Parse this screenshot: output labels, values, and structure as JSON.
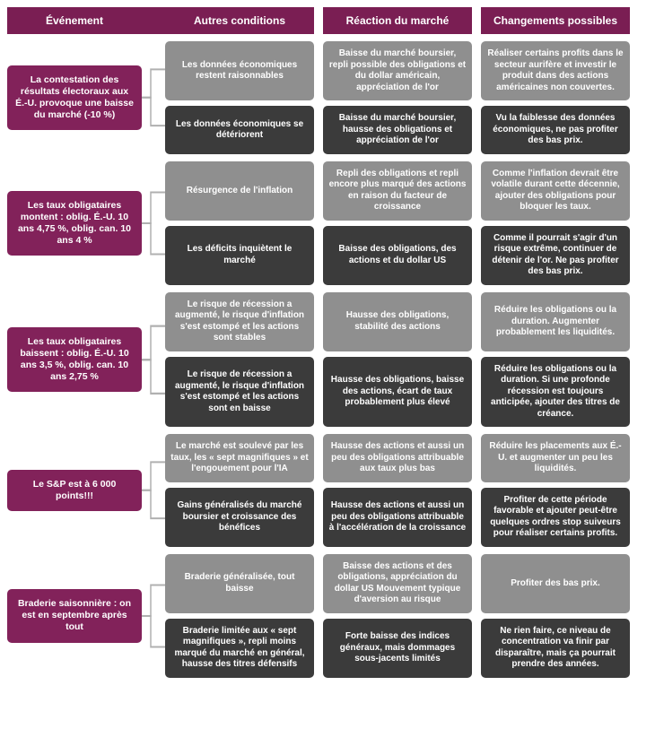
{
  "colors": {
    "header_bg": "#7a1e53",
    "event_bg": "#82225a",
    "light_box": "#8f8f8f",
    "dark_box": "#3b3b3b",
    "connector_stroke": "#b0b0b0"
  },
  "layout": {
    "col_widths": {
      "event": 150,
      "connector": 26,
      "cond": 166,
      "react": 166,
      "change": 166,
      "gap": 10
    },
    "font_size_header": 12,
    "font_size_event": 10.5,
    "font_size_cell": 10,
    "border_radius": 5
  },
  "headers": {
    "event": "Événement",
    "conditions": "Autres conditions",
    "reaction": "Réaction du marché",
    "changes": "Changements possibles"
  },
  "sections": [
    {
      "event": "La contestation des résultats électoraux aux É.-U. provoque une baisse du marché (-10 %)",
      "rows": [
        {
          "shade": "light",
          "condition": "Les données économiques restent raisonnables",
          "reaction": "Baisse du marché boursier, repli possible des obligations et du dollar américain, appréciation de l'or",
          "change": "Réaliser certains profits dans le secteur aurifère et investir le produit dans des actions américaines non couvertes."
        },
        {
          "shade": "dark",
          "condition": "Les données économiques se détériorent",
          "reaction": "Baisse du marché boursier, hausse des obligations et appréciation de l'or",
          "change": "Vu la faiblesse des données économiques, ne pas profiter des bas prix."
        }
      ]
    },
    {
      "event": "Les taux obligataires montent : oblig. É.-U. 10 ans 4,75 %, oblig. can. 10 ans 4 %",
      "rows": [
        {
          "shade": "light",
          "condition": "Résurgence de l'inflation",
          "reaction": "Repli des obligations et repli encore plus marqué des actions en raison du facteur de croissance",
          "change": "Comme l'inflation devrait être volatile durant cette décennie, ajouter des obligations pour bloquer les taux."
        },
        {
          "shade": "dark",
          "condition": "Les déficits inquiètent le marché",
          "reaction": "Baisse des obligations, des actions et du dollar US",
          "change": "Comme il pourrait s'agir d'un risque extrême, continuer de détenir de l'or. Ne pas profiter des bas prix."
        }
      ]
    },
    {
      "event": "Les taux obligataires baissent : oblig. É.-U. 10 ans 3,5 %, oblig. can. 10 ans 2,75 %",
      "rows": [
        {
          "shade": "light",
          "condition": "Le risque de récession a augmenté, le risque d'inflation s'est estompé et les actions sont stables",
          "reaction": "Hausse des obligations, stabilité des actions",
          "change": "Réduire les obligations ou la duration. Augmenter probablement les liquidités."
        },
        {
          "shade": "dark",
          "condition": "Le risque de récession a augmenté, le risque d'inflation s'est estompé et les actions sont en baisse",
          "reaction": "Hausse des obligations, baisse des actions, écart de taux probablement plus élevé",
          "change": "Réduire les obligations ou la duration. Si une profonde récession est toujours anticipée, ajouter des titres de créance."
        }
      ]
    },
    {
      "event": "Le S&P est à 6 000 points!!!",
      "rows": [
        {
          "shade": "light",
          "condition": "Le marché est soulevé par les taux, les « sept magnifiques » et l'engouement pour l'IA",
          "reaction": "Hausse des actions et aussi un peu des obligations attribuable aux taux plus bas",
          "change": "Réduire les placements aux É.-U. et augmenter un peu les liquidités."
        },
        {
          "shade": "dark",
          "condition": "Gains généralisés du marché boursier et croissance des bénéfices",
          "reaction": "Hausse des actions et aussi un peu des obligations attribuable à l'accélération de la croissance",
          "change": "Profiter de cette période favorable et ajouter peut-être quelques ordres stop suiveurs pour réaliser certains profits."
        }
      ]
    },
    {
      "event": "Braderie saisonnière : on est en septembre après tout",
      "rows": [
        {
          "shade": "light",
          "condition": "Braderie généralisée, tout baisse",
          "reaction": "Baisse des actions et des obligations, appréciation du dollar US Mouvement typique d'aversion au risque",
          "change": "Profiter des bas prix."
        },
        {
          "shade": "dark",
          "condition": "Braderie limitée aux « sept magnifiques », repli moins marqué du marché en général, hausse des titres défensifs",
          "reaction": "Forte baisse des indices généraux, mais dommages sous-jacents limités",
          "change": "Ne rien faire, ce niveau de concentration va finir par disparaître, mais ça pourrait prendre des années."
        }
      ]
    }
  ]
}
